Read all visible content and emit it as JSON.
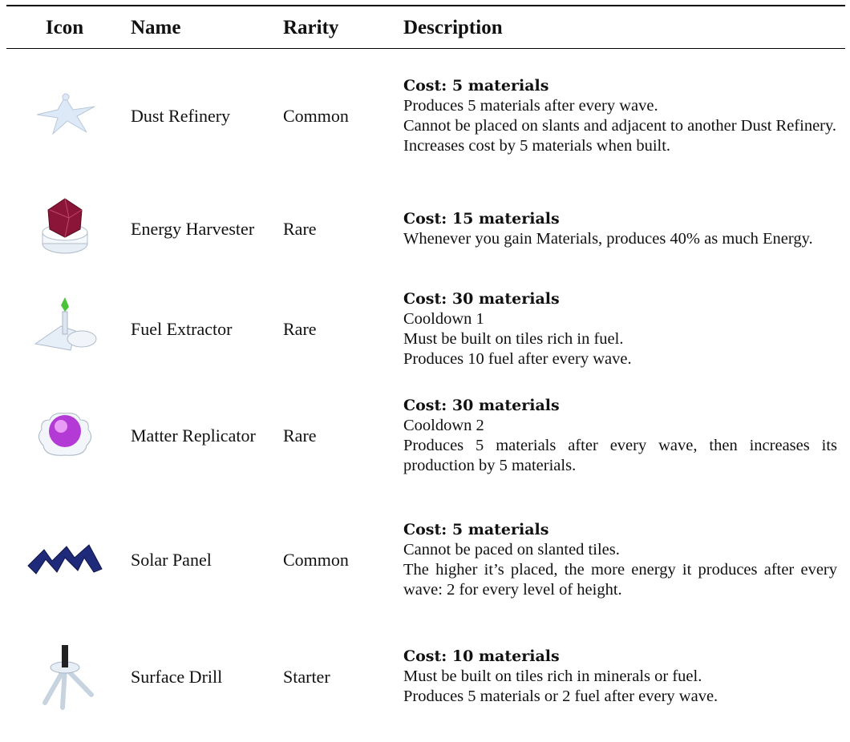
{
  "table": {
    "header": [
      "Icon",
      "Name",
      "Rarity",
      "Description"
    ],
    "rows": [
      {
        "name": "Dust Refinery",
        "rarity": "Common",
        "cost": "Cost: 5 materials",
        "lines": [
          "Produces 5 materials after every wave.",
          "Cannot be placed on slants and adjacent to another Dust Refinery.",
          "Increases cost by 5 materials when built."
        ]
      },
      {
        "name": "Energy Harvester",
        "rarity": "Rare",
        "cost": "Cost: 15 materials",
        "lines": [
          "Whenever you gain Materials, produces 40% as much Energy."
        ]
      },
      {
        "name": "Fuel Extractor",
        "rarity": "Rare",
        "cost": "Cost: 30 materials",
        "lines": [
          "Cooldown 1",
          "Must be built on tiles rich in fuel.",
          "Produces 10 fuel after every wave."
        ]
      },
      {
        "name": "Matter Replicator",
        "rarity": "Rare",
        "cost": "Cost: 30 materials",
        "lines": [
          "Cooldown 2",
          "Produces 5 materials after every wave, then increases its production by 5 materials."
        ]
      },
      {
        "name": "Solar Panel",
        "rarity": "Common",
        "cost": "Cost: 5 materials",
        "lines": [
          "Cannot be paced on slanted tiles.",
          "The higher it’s placed, the more energy it produces after every wave: 2 for every level of height."
        ]
      },
      {
        "name": "Surface Drill",
        "rarity": "Starter",
        "cost": "Cost: 10 materials",
        "lines": [
          "Must be built on tiles rich in minerals or fuel.",
          "Produces 5 materials or 2 fuel after every wave."
        ]
      }
    ]
  }
}
